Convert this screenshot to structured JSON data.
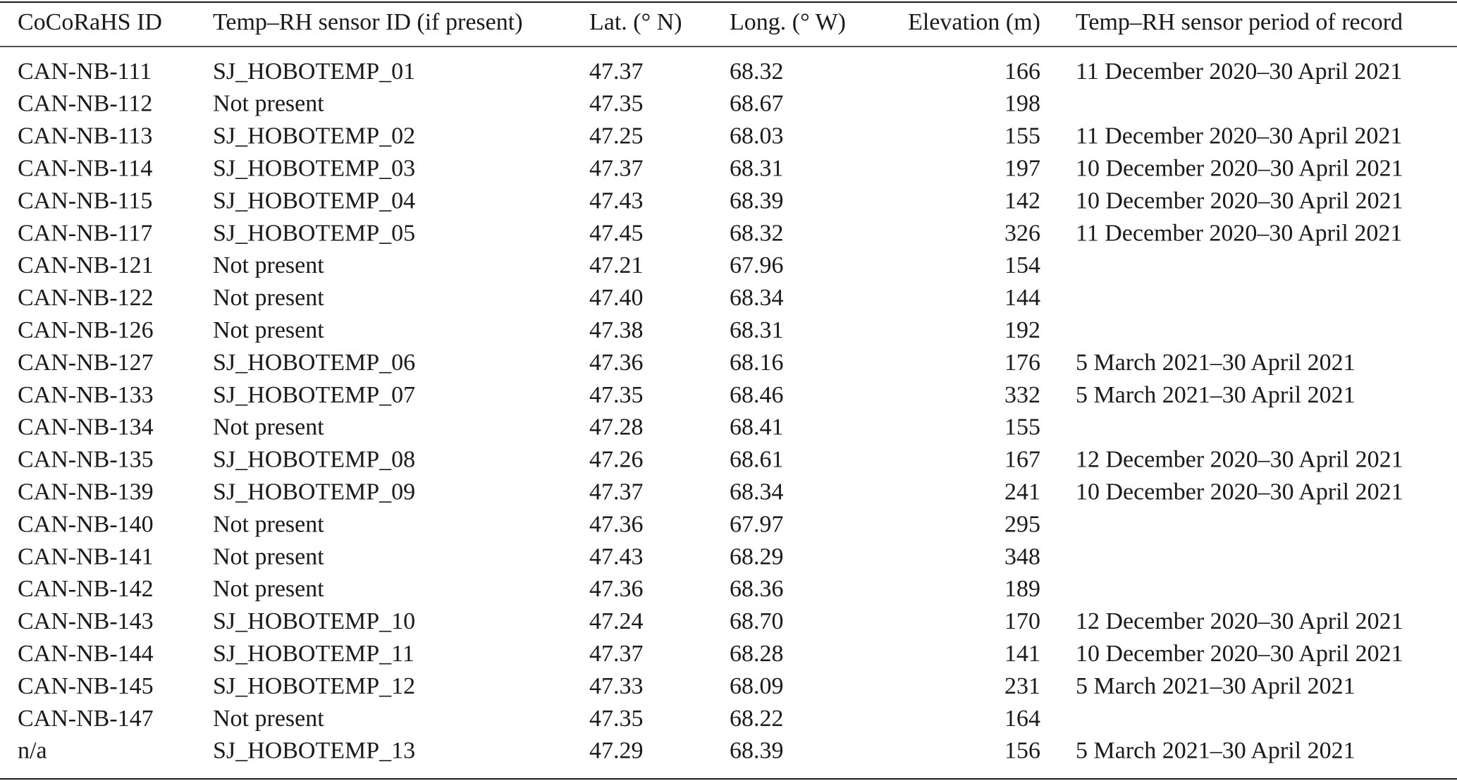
{
  "table": {
    "header": [
      "CoCoRaHS ID",
      "Temp–RH sensor ID (if present)",
      "Lat. (° N)",
      "Long. (° W)",
      "Elevation (m)",
      "Temp–RH sensor period of record"
    ],
    "rows": [
      [
        "CAN-NB-111",
        "SJ_HOBOTEMP_01",
        "47.37",
        "68.32",
        "166",
        "11 December 2020–30 April 2021"
      ],
      [
        "CAN-NB-112",
        "Not present",
        "47.35",
        "68.67",
        "198"
      ],
      [
        "CAN-NB-113",
        "SJ_HOBOTEMP_02",
        "47.25",
        "68.03",
        "155",
        "11 December 2020–30 April 2021"
      ],
      [
        "CAN-NB-114",
        "SJ_HOBOTEMP_03",
        "47.37",
        "68.31",
        "197",
        "10 December 2020–30 April 2021"
      ],
      [
        "CAN-NB-115",
        "SJ_HOBOTEMP_04",
        "47.43",
        "68.39",
        "142",
        "10 December 2020–30 April 2021"
      ],
      [
        "CAN-NB-117",
        "SJ_HOBOTEMP_05",
        "47.45",
        "68.32",
        "326",
        "11 December 2020–30 April 2021"
      ],
      [
        "CAN-NB-121",
        "Not present",
        "47.21",
        "67.96",
        "154"
      ],
      [
        "CAN-NB-122",
        "Not present",
        "47.40",
        "68.34",
        "144"
      ],
      [
        "CAN-NB-126",
        "Not present",
        "47.38",
        "68.31",
        "192"
      ],
      [
        "CAN-NB-127",
        "SJ_HOBOTEMP_06",
        "47.36",
        "68.16",
        "176",
        "5 March 2021–30 April 2021"
      ],
      [
        "CAN-NB-133",
        "SJ_HOBOTEMP_07",
        "47.35",
        "68.46",
        "332",
        "5 March 2021–30 April 2021"
      ],
      [
        "CAN-NB-134",
        "Not present",
        "47.28",
        "68.41",
        "155"
      ],
      [
        "CAN-NB-135",
        "SJ_HOBOTEMP_08",
        "47.26",
        "68.61",
        "167",
        "12 December 2020–30 April 2021"
      ],
      [
        "CAN-NB-139",
        "SJ_HOBOTEMP_09",
        "47.37",
        "68.34",
        "241",
        "10 December 2020–30 April 2021"
      ],
      [
        "CAN-NB-140",
        "Not present",
        "47.36",
        "67.97",
        "295"
      ],
      [
        "CAN-NB-141",
        "Not present",
        "47.43",
        "68.29",
        "348"
      ],
      [
        "CAN-NB-142",
        "Not present",
        "47.36",
        "68.36",
        "189"
      ],
      [
        "CAN-NB-143",
        "SJ_HOBOTEMP_10",
        "47.24",
        "68.70",
        "170",
        "12 December 2020–30 April 2021"
      ],
      [
        "CAN-NB-144",
        "SJ_HOBOTEMP_11",
        "47.37",
        "68.28",
        "141",
        "10 December 2020–30 April 2021"
      ],
      [
        "CAN-NB-145",
        "SJ_HOBOTEMP_12",
        "47.33",
        "68.09",
        "231",
        "5 March 2021–30 April 2021"
      ],
      [
        "CAN-NB-147",
        "Not present",
        "47.35",
        "68.22",
        "164"
      ],
      [
        "n/a",
        "SJ_HOBOTEMP_13",
        "47.29",
        "68.39",
        "156",
        "5 March 2021–30 April 2021"
      ]
    ]
  }
}
